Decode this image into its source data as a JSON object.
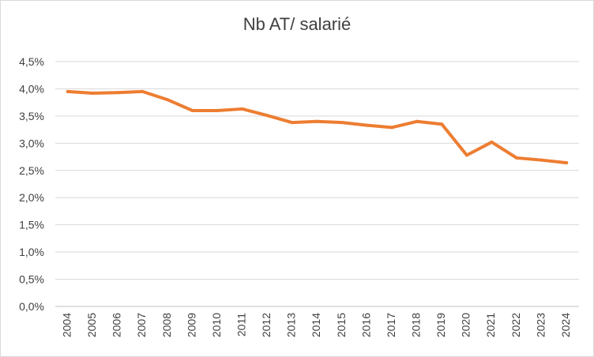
{
  "chart_data": {
    "type": "line",
    "title": "Nb AT/ salarié",
    "xlabel": "",
    "ylabel": "",
    "categories": [
      "2004",
      "2005",
      "2006",
      "2007",
      "2008",
      "2009",
      "2010",
      "2011",
      "2012",
      "2013",
      "2014",
      "2015",
      "2016",
      "2017",
      "2018",
      "2019",
      "2020",
      "2021",
      "2022",
      "2023",
      "2024"
    ],
    "series": [
      {
        "values": [
          3.95,
          3.92,
          3.93,
          3.95,
          3.8,
          3.6,
          3.6,
          3.63,
          3.51,
          3.38,
          3.4,
          3.38,
          3.33,
          3.29,
          3.4,
          3.35,
          2.78,
          3.02,
          2.73,
          2.69,
          2.64
        ],
        "color": "#ED7D31"
      }
    ],
    "ylim": [
      0,
      4.5
    ],
    "yticks": [
      "0,0%",
      "0,5%",
      "1,0%",
      "1,5%",
      "2,0%",
      "2,5%",
      "3,0%",
      "3,5%",
      "4,0%",
      "4,5%"
    ],
    "grid": true,
    "legend": "none"
  }
}
